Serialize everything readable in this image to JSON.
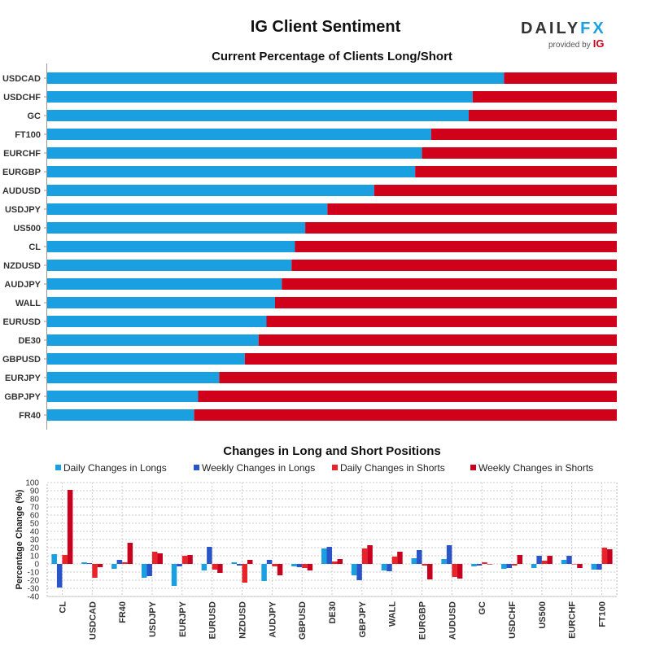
{
  "header": {
    "title": "IG Client Sentiment",
    "logo_daily": "DAILY",
    "logo_fx": "FX",
    "logo_provided": "provided by",
    "logo_ig": "IG"
  },
  "colors": {
    "long": "#1a9fe0",
    "short": "#d0021b",
    "daily_long": "#1a9fe0",
    "weekly_long": "#2a55c8",
    "daily_short": "#e8232a",
    "weekly_short": "#c8001e"
  },
  "chart_data": [
    {
      "type": "bar",
      "orientation": "horizontal",
      "stacked": true,
      "title": "Current Percentage of Clients Long/Short",
      "categories": [
        "USDCAD",
        "USDCHF",
        "GC",
        "FT100",
        "EURCHF",
        "EURGBP",
        "AUDUSD",
        "USDJPY",
        "US500",
        "CL",
        "NZDUSD",
        "AUDJPY",
        "WALL",
        "EURUSD",
        "DE30",
        "GBPUSD",
        "EURJPY",
        "GBPJPY",
        "FR40"
      ],
      "series": [
        {
          "key": "long",
          "values": [
            80.2,
            74.7,
            74.0,
            67.4,
            65.8,
            64.6,
            57.4,
            49.2,
            45.3,
            43.5,
            42.9,
            41.2,
            40.0,
            38.5,
            37.1,
            34.7,
            30.2,
            26.5,
            25.8
          ]
        },
        {
          "key": "short",
          "values": [
            19.8,
            25.3,
            26.0,
            32.6,
            34.2,
            35.4,
            42.6,
            50.8,
            54.7,
            56.5,
            57.1,
            58.8,
            60.0,
            61.5,
            62.9,
            65.3,
            69.8,
            73.5,
            74.2
          ]
        }
      ],
      "xlim": [
        0,
        100
      ]
    },
    {
      "type": "bar",
      "title": "Changes in Long and Short Positions",
      "ylabel": "Percentage Change (%)",
      "ylim": [
        -40,
        100
      ],
      "yticks": [
        -40,
        -30,
        -20,
        -10,
        0,
        10,
        20,
        30,
        40,
        50,
        60,
        70,
        80,
        90,
        100
      ],
      "grid": true,
      "legend_position": "top",
      "categories": [
        "CL",
        "USDCAD",
        "FR40",
        "USDJPY",
        "EURJPY",
        "EURUSD",
        "NZDUSD",
        "AUDJPY",
        "GBPUSD",
        "DE30",
        "GBPJPY",
        "WALL",
        "EURGBP",
        "AUDUSD",
        "GC",
        "USDCHF",
        "US500",
        "EURCHF",
        "FT100"
      ],
      "series": [
        {
          "name": "Daily Changes in Longs",
          "color_key": "daily_long",
          "values": [
            12,
            2,
            -6,
            -17,
            -27,
            -8,
            2,
            -21,
            -3,
            19,
            -14,
            -8,
            7,
            6,
            -3,
            -6,
            -5,
            5,
            -7
          ]
        },
        {
          "name": "Weekly Changes in Longs",
          "color_key": "weekly_long",
          "values": [
            -29,
            1,
            5,
            -15,
            -3,
            21,
            -2,
            5,
            -4,
            21,
            -20,
            -9,
            17,
            23,
            -2,
            -5,
            10,
            10,
            -7
          ]
        },
        {
          "name": "Daily Changes in Shorts",
          "color_key": "daily_short",
          "values": [
            11,
            -17,
            2,
            15,
            10,
            -7,
            -23,
            -3,
            -5,
            3,
            19,
            9,
            -2,
            -16,
            2,
            -2,
            4,
            0,
            20
          ]
        },
        {
          "name": "Weekly Changes in Shorts",
          "color_key": "weekly_short",
          "values": [
            91,
            -4,
            26,
            13,
            11,
            -11,
            5,
            -14,
            -8,
            6,
            23,
            15,
            -19,
            -18,
            0,
            11,
            10,
            -5,
            18
          ]
        }
      ]
    }
  ]
}
